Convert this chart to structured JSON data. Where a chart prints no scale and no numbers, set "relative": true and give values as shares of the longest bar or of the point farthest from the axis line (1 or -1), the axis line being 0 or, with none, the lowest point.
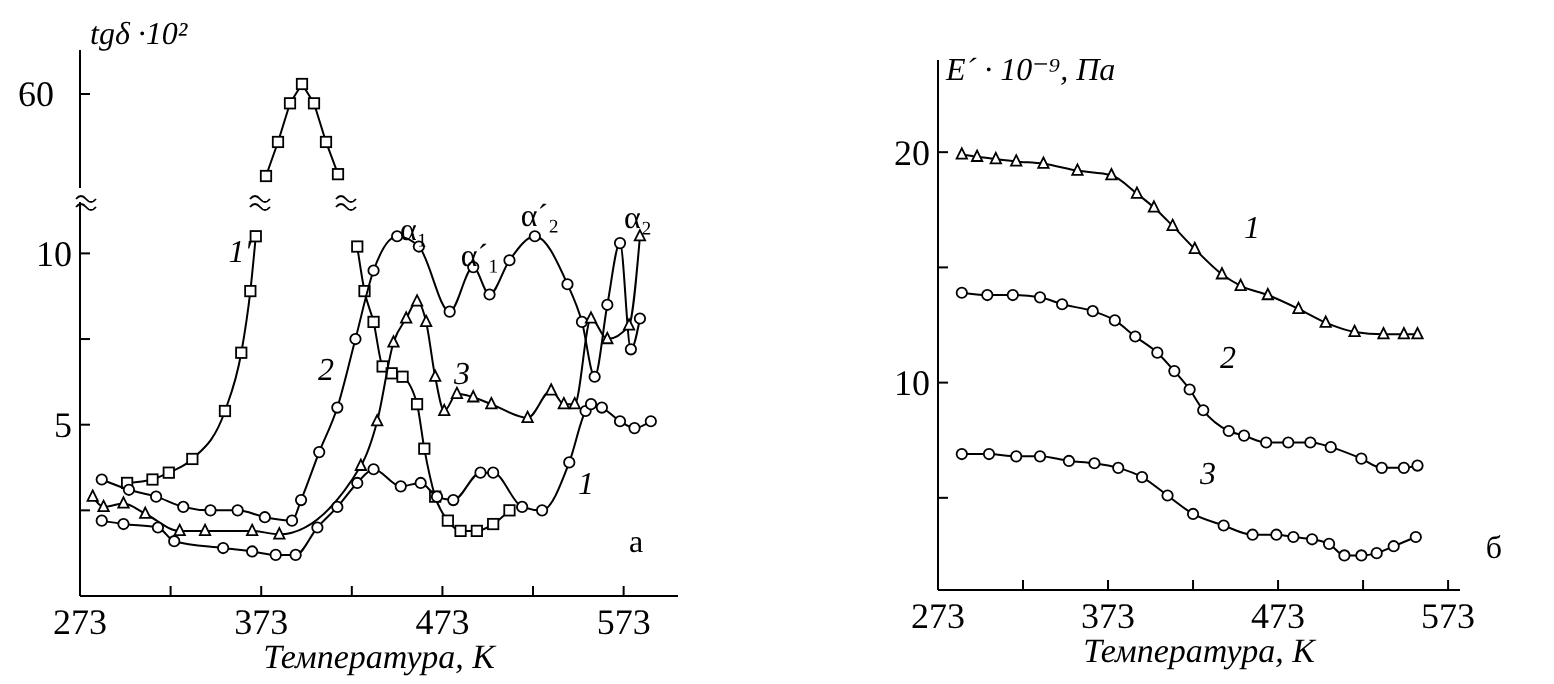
{
  "chart_data": [
    {
      "type": "line",
      "ylabel": "tgδ ·10²",
      "relative": true,
      "series": [
        {
          "color": "#000000",
          "marker": "square",
          "values": [
            0,
            0.37,
            0.79,
            1,
            0.79,
            0.37,
            0.02
          ]
        }
      ],
      "categories": [
        null,
        null,
        null,
        null,
        null,
        null,
        null
      ],
      "annotations": [
        "60"
      ]
    },
    {
      "type": "line",
      "xlabel": "Температура, К",
      "xlim": [
        273,
        603
      ],
      "xticks": [
        273,
        {
          "value": 323,
          "label": null
        },
        373,
        {
          "value": 423,
          "label": null
        },
        473,
        {
          "value": 523,
          "label": null
        },
        573
      ],
      "ylim": [
        0,
        11.5
      ],
      "yticks": [
        {
          "value": 2.5,
          "label": null
        },
        5,
        {
          "value": 7.5,
          "label": null
        },
        10
      ],
      "series": [
        {
          "color": "#000000",
          "marker": "square",
          "x": [
            299,
            313,
            322,
            335,
            353,
            362,
            367,
            370,
            398,
            426,
            430,
            435,
            440,
            445,
            451,
            459,
            463,
            469,
            476,
            483,
            492,
            501,
            510
          ],
          "values": [
            3.3,
            3.4,
            3.6,
            4.0,
            5.4,
            7.1,
            8.9,
            10.5,
            null,
            10.2,
            8.9,
            8.0,
            6.7,
            6.5,
            6.4,
            5.6,
            4.3,
            2.9,
            2.2,
            1.9,
            1.9,
            2.1,
            2.5
          ]
        },
        {
          "color": "#000000",
          "marker": "circle",
          "x": [
            285,
            300,
            315,
            330,
            345,
            360,
            375,
            390,
            395,
            405,
            415,
            425,
            435,
            448,
            460,
            477,
            490,
            499,
            510,
            524,
            542,
            550,
            557,
            564,
            571,
            577,
            582
          ],
          "values": [
            3.4,
            3.1,
            2.9,
            2.6,
            2.5,
            2.5,
            2.3,
            2.2,
            2.8,
            4.2,
            5.5,
            7.5,
            9.5,
            10.5,
            10.2,
            8.3,
            9.6,
            8.8,
            9.8,
            10.5,
            9.1,
            8.0,
            6.4,
            8.5,
            10.3,
            7.2,
            8.1
          ]
        },
        {
          "color": "#000000",
          "marker": "triangle",
          "x": [
            280,
            286,
            297,
            309,
            328,
            342,
            368,
            383,
            428,
            437,
            446,
            453,
            459,
            464,
            469,
            474,
            481,
            490,
            500,
            520,
            533,
            540,
            546,
            555,
            564,
            576,
            582
          ],
          "values": [
            2.9,
            2.6,
            2.7,
            2.4,
            1.9,
            1.9,
            1.9,
            1.8,
            3.8,
            5.1,
            7.4,
            8.1,
            8.6,
            8.0,
            6.4,
            5.4,
            5.9,
            5.8,
            5.6,
            5.2,
            6.0,
            5.6,
            5.6,
            8.1,
            7.5,
            7.9,
            10.5
          ]
        },
        {
          "color": "#000000",
          "marker": "circle",
          "x": [
            285,
            297,
            316,
            325,
            352,
            368,
            381,
            392,
            404,
            415,
            426,
            435,
            450,
            461,
            470,
            479,
            494,
            501,
            517,
            528,
            543,
            552,
            555,
            561,
            571,
            579,
            588
          ],
          "values": [
            2.2,
            2.1,
            2.0,
            1.6,
            1.4,
            1.3,
            1.2,
            1.2,
            2.0,
            2.6,
            3.3,
            3.7,
            3.2,
            3.3,
            2.9,
            2.8,
            3.6,
            3.6,
            2.6,
            2.5,
            3.9,
            5.4,
            5.6,
            5.5,
            5.1,
            4.9,
            5.1
          ]
        }
      ],
      "annotations": [
        "1′",
        "2",
        "3",
        "1",
        "α₁",
        "α´₁",
        "α´₂",
        "α₂",
        "а"
      ]
    },
    {
      "type": "line",
      "xlabel": "Температура, К",
      "ylabel": "E´ · 10⁻⁹, Па",
      "xlim": [
        273,
        580
      ],
      "xticks": [
        273,
        {
          "value": 323,
          "label": null
        },
        373,
        {
          "value": 423,
          "label": null
        },
        473,
        {
          "value": 523,
          "label": null
        },
        573
      ],
      "ylim": [
        1,
        24
      ],
      "yticks": [
        {
          "value": 5,
          "label": null
        },
        10,
        {
          "value": 15,
          "label": null
        },
        20
      ],
      "series": [
        {
          "color": "#000000",
          "marker": "triangle",
          "x": [
            287,
            296,
            307,
            319,
            335,
            355,
            375,
            390,
            400,
            411,
            424,
            440,
            451,
            467,
            485,
            501,
            518,
            535,
            547,
            555
          ],
          "values": [
            19.9,
            19.8,
            19.7,
            19.6,
            19.5,
            19.2,
            19.0,
            18.2,
            17.6,
            16.8,
            15.8,
            14.7,
            14.2,
            13.8,
            13.2,
            12.6,
            12.2,
            12.1,
            12.1,
            12.1
          ]
        },
        {
          "color": "#000000",
          "marker": "circle",
          "x": [
            287,
            302,
            317,
            333,
            346,
            364,
            377,
            389,
            402,
            412,
            421,
            429,
            444,
            453,
            466,
            479,
            492,
            504,
            522,
            534,
            547,
            555
          ],
          "values": [
            13.9,
            13.8,
            13.8,
            13.7,
            13.4,
            13.1,
            12.7,
            12.0,
            11.3,
            10.5,
            9.7,
            8.8,
            7.9,
            7.7,
            7.4,
            7.4,
            7.4,
            7.2,
            6.7,
            6.3,
            6.3,
            6.4
          ]
        },
        {
          "color": "#000000",
          "marker": "circle",
          "x": [
            287,
            303,
            319,
            333,
            350,
            365,
            379,
            393,
            408,
            423,
            441,
            458,
            472,
            482,
            493,
            503,
            512,
            522,
            531,
            541,
            554
          ],
          "values": [
            6.9,
            6.9,
            6.8,
            6.8,
            6.6,
            6.5,
            6.3,
            5.9,
            5.1,
            4.3,
            3.8,
            3.4,
            3.4,
            3.3,
            3.2,
            3.0,
            2.5,
            2.5,
            2.6,
            2.9,
            3.3
          ]
        }
      ],
      "annotations": [
        "1",
        "2",
        "3",
        "б"
      ]
    }
  ]
}
